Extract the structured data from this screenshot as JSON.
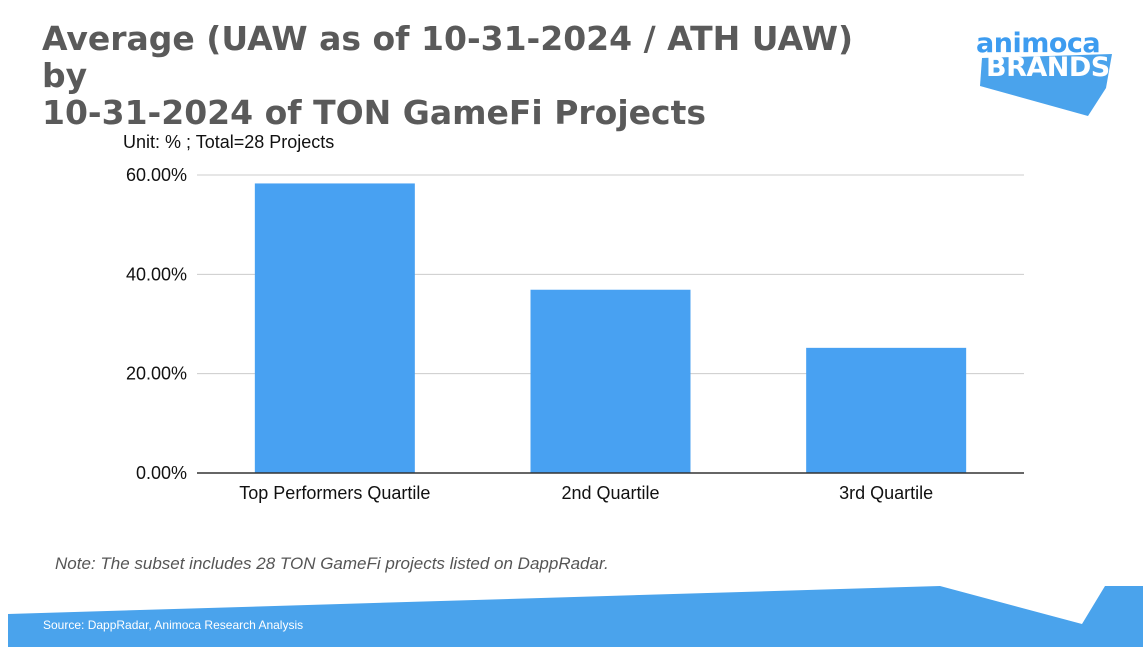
{
  "title_lines": [
    "Average (UAW as of 10-31-2024 / ATH UAW) by",
    "10-31-2024 of TON GameFi Projects"
  ],
  "logo": {
    "top": "animoca",
    "bottom": "BRANDS"
  },
  "unit_label": "Unit: % ; Total=28 Projects",
  "note": "Note: The subset includes 28 TON GameFi projects listed on DappRadar.",
  "source": "Source: DappRadar, Animoca Research Analysis",
  "colors": {
    "bar": "#48a1f2",
    "accent": "#4aa3ec",
    "title": "#5a5a5a",
    "grid": "#cccccc"
  },
  "chart_data": {
    "type": "bar",
    "title": "Average (UAW as of 10-31-2024 / ATH UAW) by 10-31-2024 of TON GameFi Projects",
    "categories": [
      "Top Performers Quartile",
      "2nd Quartile",
      "3rd Quartile"
    ],
    "values": [
      58.3,
      36.9,
      25.2
    ],
    "ylim": [
      0,
      60
    ],
    "yticks": [
      0,
      20,
      40,
      60
    ],
    "ytick_labels": [
      "0.00%",
      "20.00%",
      "40.00%",
      "60.00%"
    ],
    "xlabel": "",
    "ylabel": "",
    "grid": true,
    "legend": "none"
  }
}
